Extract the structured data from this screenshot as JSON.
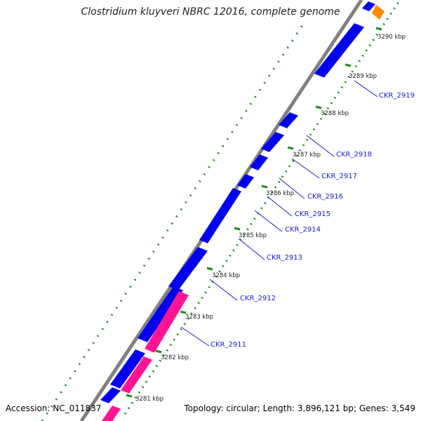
{
  "title": "Clostridium kluyveri NBRC 12016, complete genome",
  "footer": {
    "accession": "Accession: NC_011837",
    "topology": "Topology: circular; Length: 3,896,121 bp; Genes: 3,549"
  },
  "colors": {
    "forward_gene": "#0000ee",
    "reverse_gene": "#ff1493",
    "other_feature": "#ff8c00",
    "backbone": "#808080",
    "tick": "#228b22",
    "label": "#1a1ad6"
  },
  "ticks": [
    "3281 kbp",
    "3282 kbp",
    "3283 kbp",
    "3284 kbp",
    "3285 kbp",
    "3286 kbp",
    "3287 kbp",
    "3288 kbp",
    "3289 kbp",
    "3290 kbp"
  ],
  "gene_labels": [
    "CKR_2911",
    "CKR_2912",
    "CKR_2913",
    "CKR_2914",
    "CKR_2915",
    "CKR_2916",
    "CKR_2917",
    "CKR_2918",
    "CKR_2919"
  ]
}
